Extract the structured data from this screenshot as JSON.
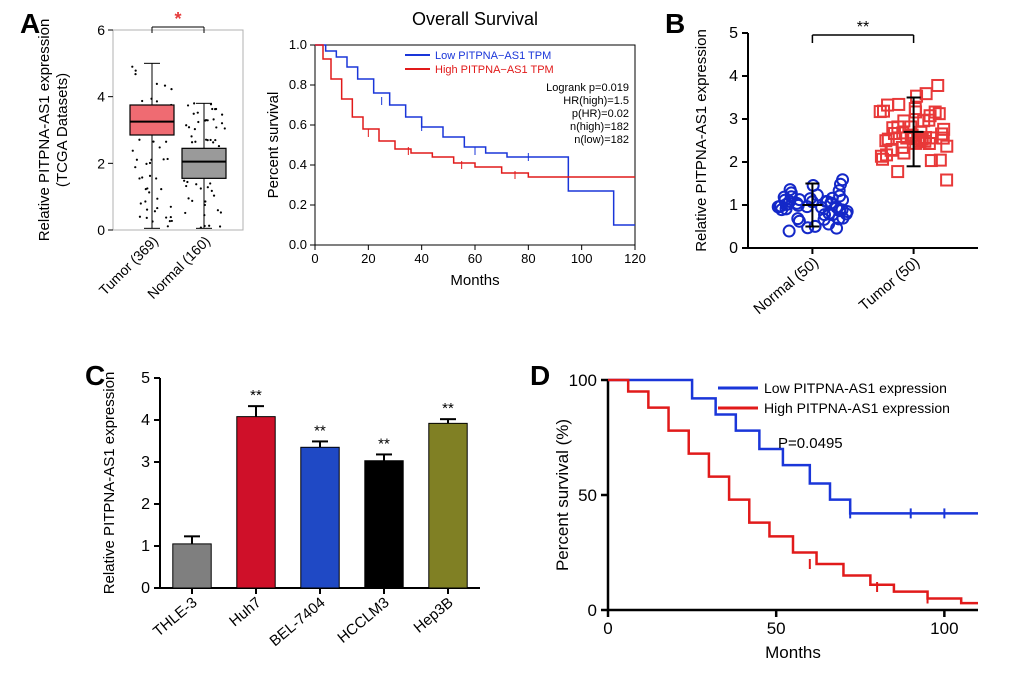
{
  "panelA": {
    "label": "A",
    "boxplot": {
      "ylabel": "Relative PITPNA-AS1 expression\n(TCGA Datasets)",
      "xlabels": [
        "Tumor (369)",
        "Normal (160)"
      ],
      "ylim": [
        0,
        6
      ],
      "yticks": [
        0,
        2,
        4,
        6
      ],
      "boxes": [
        {
          "median": 3.25,
          "q1": 2.85,
          "q3": 3.75,
          "wmin": 0.05,
          "wmax": 5.0,
          "fill": "#ef6b72",
          "stroke": "#000"
        },
        {
          "median": 2.05,
          "q1": 1.55,
          "q3": 2.45,
          "wmin": 0.05,
          "wmax": 3.8,
          "fill": "#9a9a9a",
          "stroke": "#000"
        }
      ],
      "sig_marker": "*",
      "marker_color": "#e63b3b",
      "bg": "#ffffff",
      "border": "#b0b0b0"
    },
    "survival": {
      "title": "Overall Survival",
      "xlabel": "Months",
      "ylabel": "Percent survival",
      "xlim": [
        0,
        120
      ],
      "xticks": [
        0,
        20,
        40,
        60,
        80,
        100,
        120
      ],
      "ylim": [
        0,
        1.0
      ],
      "yticks": [
        0.0,
        0.2,
        0.4,
        0.6,
        0.8,
        1.0
      ],
      "legend": [
        {
          "label": "Low PITPNA−AS1 TPM",
          "color": "#1a36d9"
        },
        {
          "label": "High PITPNA−AS1 TPM",
          "color": "#e11a1a"
        }
      ],
      "stats": [
        "Logrank p=0.019",
        "HR(high)=1.5",
        "p(HR)=0.02",
        "n(high)=182",
        "n(low)=182"
      ],
      "low_points": [
        [
          0,
          1.0
        ],
        [
          4,
          0.97
        ],
        [
          8,
          0.94
        ],
        [
          12,
          0.89
        ],
        [
          16,
          0.83
        ],
        [
          22,
          0.76
        ],
        [
          28,
          0.7
        ],
        [
          34,
          0.64
        ],
        [
          40,
          0.59
        ],
        [
          48,
          0.54
        ],
        [
          56,
          0.49
        ],
        [
          64,
          0.46
        ],
        [
          72,
          0.44
        ],
        [
          80,
          0.44
        ],
        [
          88,
          0.44
        ],
        [
          95,
          0.27
        ],
        [
          105,
          0.27
        ],
        [
          112,
          0.1
        ],
        [
          120,
          0.1
        ]
      ],
      "high_points": [
        [
          0,
          1.0
        ],
        [
          3,
          0.93
        ],
        [
          6,
          0.83
        ],
        [
          10,
          0.73
        ],
        [
          14,
          0.64
        ],
        [
          18,
          0.58
        ],
        [
          24,
          0.52
        ],
        [
          30,
          0.48
        ],
        [
          36,
          0.46
        ],
        [
          44,
          0.44
        ],
        [
          52,
          0.41
        ],
        [
          60,
          0.39
        ],
        [
          70,
          0.36
        ],
        [
          80,
          0.34
        ],
        [
          90,
          0.34
        ],
        [
          105,
          0.34
        ],
        [
          120,
          0.34
        ]
      ]
    }
  },
  "panelB": {
    "label": "B",
    "ylabel": "Relative PITPNA-AS1 expression",
    "xlabels": [
      "Normal (50)",
      "Tumor (50)"
    ],
    "ylim": [
      0,
      5
    ],
    "yticks": [
      0,
      1,
      2,
      3,
      4,
      5
    ],
    "groups": [
      {
        "mean": 1.0,
        "sd": 0.5,
        "color": "#1428c8",
        "marker": "circle"
      },
      {
        "mean": 2.7,
        "sd": 0.8,
        "color": "#e83838",
        "marker": "square"
      }
    ],
    "sig_marker": "**"
  },
  "panelC": {
    "label": "C",
    "ylabel": "Relative PITPNA-AS1 expression",
    "categories": [
      "THLE-3",
      "Huh7",
      "BEL-7404",
      "HCCLM3",
      "Hep3B"
    ],
    "ylim": [
      0,
      5
    ],
    "yticks": [
      0,
      1,
      2,
      3,
      4,
      5
    ],
    "values": [
      1.05,
      4.08,
      3.35,
      3.03,
      3.92
    ],
    "errors": [
      0.18,
      0.25,
      0.14,
      0.15,
      0.1
    ],
    "colors": [
      "#7f7f7f",
      "#cf1029",
      "#1f49c5",
      "#000000",
      "#808024"
    ],
    "sig_markers": [
      "",
      "**",
      "**",
      "**",
      "**"
    ],
    "bar_width": 0.6
  },
  "panelD": {
    "label": "D",
    "ylabel": "Percent survival (%)",
    "xlabel": "Months",
    "xlim": [
      0,
      110
    ],
    "xticks": [
      0,
      50,
      100
    ],
    "ylim": [
      0,
      100
    ],
    "yticks": [
      0,
      50,
      100
    ],
    "legend": [
      {
        "label": "Low PITPNA-AS1 expression",
        "color": "#1a36d9"
      },
      {
        "label": "High PITPNA-AS1 expression",
        "color": "#e11a1a"
      }
    ],
    "p_text": "P=0.0495",
    "low_points": [
      [
        0,
        100
      ],
      [
        10,
        100
      ],
      [
        18,
        100
      ],
      [
        25,
        92
      ],
      [
        32,
        85
      ],
      [
        38,
        78
      ],
      [
        45,
        70
      ],
      [
        52,
        63
      ],
      [
        60,
        55
      ],
      [
        66,
        48
      ],
      [
        72,
        42
      ],
      [
        85,
        42
      ],
      [
        100,
        42
      ],
      [
        110,
        42
      ]
    ],
    "high_points": [
      [
        0,
        100
      ],
      [
        6,
        95
      ],
      [
        12,
        88
      ],
      [
        18,
        78
      ],
      [
        24,
        68
      ],
      [
        30,
        58
      ],
      [
        36,
        48
      ],
      [
        42,
        38
      ],
      [
        48,
        32
      ],
      [
        55,
        25
      ],
      [
        62,
        20
      ],
      [
        70,
        15
      ],
      [
        78,
        11
      ],
      [
        85,
        8
      ],
      [
        95,
        5
      ],
      [
        105,
        3
      ],
      [
        110,
        3
      ]
    ]
  },
  "style": {
    "axis_color": "#000000",
    "tick_fontsize": 14,
    "label_fontsize": 16,
    "panel_label_fontsize": 28,
    "title_fontsize": 18
  }
}
